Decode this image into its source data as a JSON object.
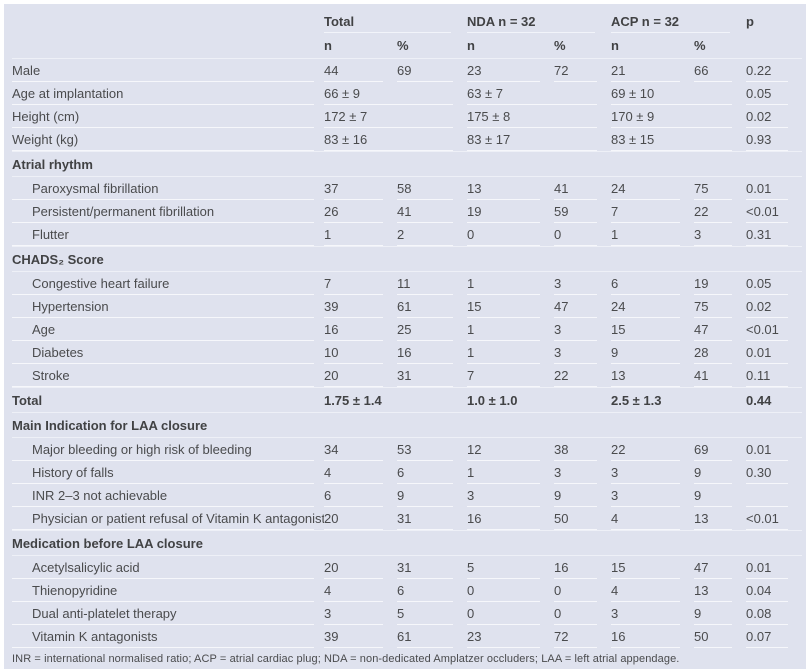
{
  "table": {
    "groups": [
      "Total",
      "NDA n = 32",
      "ACP n = 32"
    ],
    "p_header": "p",
    "sub_headers": [
      "n",
      "%",
      "n",
      "%",
      "n",
      "%"
    ],
    "rows": [
      {
        "type": "data",
        "indent": false,
        "label": "Male",
        "values": [
          "44",
          "69",
          "23",
          "72",
          "21",
          "66",
          "0.22"
        ]
      },
      {
        "type": "data",
        "indent": false,
        "label": "Age at implantation",
        "values": [
          "66 ± 9",
          "",
          "63 ± 7",
          "",
          "69 ± 10",
          "",
          "0.05"
        ]
      },
      {
        "type": "data",
        "indent": false,
        "label": "Height (cm)",
        "values": [
          "172 ± 7",
          "",
          "175 ± 8",
          "",
          "170 ± 9",
          "",
          "0.02"
        ]
      },
      {
        "type": "data",
        "indent": false,
        "label": "Weight (kg)",
        "values": [
          "83 ± 16",
          "",
          "83 ± 17",
          "",
          "83 ± 15",
          "",
          "0.93"
        ]
      },
      {
        "type": "section",
        "label": "Atrial rhythm"
      },
      {
        "type": "data",
        "indent": true,
        "label": "Paroxysmal fibrillation",
        "values": [
          "37",
          "58",
          "13",
          "41",
          "24",
          "75",
          "0.01"
        ]
      },
      {
        "type": "data",
        "indent": true,
        "label": "Persistent/permanent fibrillation",
        "values": [
          "26",
          "41",
          "19",
          "59",
          "7",
          "22",
          "<0.01"
        ]
      },
      {
        "type": "data",
        "indent": true,
        "label": "Flutter",
        "values": [
          "1",
          "2",
          "0",
          "0",
          "1",
          "3",
          "0.31"
        ]
      },
      {
        "type": "section",
        "label": "CHADS₂ Score"
      },
      {
        "type": "data",
        "indent": true,
        "label": "Congestive heart failure",
        "values": [
          "7",
          "11",
          "1",
          "3",
          "6",
          "19",
          "0.05"
        ]
      },
      {
        "type": "data",
        "indent": true,
        "label": "Hypertension",
        "values": [
          "39",
          "61",
          "15",
          "47",
          "24",
          "75",
          "0.02"
        ]
      },
      {
        "type": "data",
        "indent": true,
        "label": "Age",
        "values": [
          "16",
          "25",
          "1",
          "3",
          "15",
          "47",
          "<0.01"
        ]
      },
      {
        "type": "data",
        "indent": true,
        "label": "Diabetes",
        "values": [
          "10",
          "16",
          "1",
          "3",
          "9",
          "28",
          "0.01"
        ]
      },
      {
        "type": "data",
        "indent": true,
        "label": "Stroke",
        "values": [
          "20",
          "31",
          "7",
          "22",
          "13",
          "41",
          "0.11"
        ]
      },
      {
        "type": "total",
        "indent": false,
        "label": "Total",
        "values": [
          "1.75 ± 1.4",
          "",
          "1.0 ± 1.0",
          "",
          "2.5 ± 1.3",
          "",
          "0.44"
        ]
      },
      {
        "type": "section",
        "label": "Main Indication for LAA closure"
      },
      {
        "type": "data",
        "indent": true,
        "label": "Major bleeding or high risk of bleeding",
        "values": [
          "34",
          "53",
          "12",
          "38",
          "22",
          "69",
          "0.01"
        ]
      },
      {
        "type": "data",
        "indent": true,
        "label": "History of falls",
        "values": [
          "4",
          "6",
          "1",
          "3",
          "3",
          "9",
          "0.30"
        ]
      },
      {
        "type": "data",
        "indent": true,
        "label": "INR 2–3 not achievable",
        "values": [
          "6",
          "9",
          "3",
          "9",
          "3",
          "9",
          ""
        ]
      },
      {
        "type": "data",
        "indent": true,
        "label": "Physician or patient refusal of Vitamin K antagonist",
        "values": [
          "20",
          "31",
          "16",
          "50",
          "4",
          "13",
          "<0.01"
        ]
      },
      {
        "type": "section",
        "label": "Medication before LAA closure"
      },
      {
        "type": "data",
        "indent": true,
        "label": "Acetylsalicylic acid",
        "values": [
          "20",
          "31",
          "5",
          "16",
          "15",
          "47",
          "0.01"
        ]
      },
      {
        "type": "data",
        "indent": true,
        "label": "Thienopyridine",
        "values": [
          "4",
          "6",
          "0",
          "0",
          "4",
          "13",
          "0.04"
        ]
      },
      {
        "type": "data",
        "indent": true,
        "label": "Dual anti-platelet therapy",
        "values": [
          "3",
          "5",
          "0",
          "0",
          "3",
          "9",
          "0.08"
        ]
      },
      {
        "type": "data",
        "indent": true,
        "label": "Vitamin K antagonists",
        "values": [
          "39",
          "61",
          "23",
          "72",
          "16",
          "50",
          "0.07"
        ]
      }
    ]
  },
  "footnote": "INR = international normalised ratio; ACP = atrial cardiac plug; NDA = non-dedicated Amplatzer occluders; LAA = left atrial appendage.",
  "colors": {
    "table_background": "#dfe2ee",
    "text": "#4a4b4d",
    "separator_line": "#f6f7fb"
  }
}
